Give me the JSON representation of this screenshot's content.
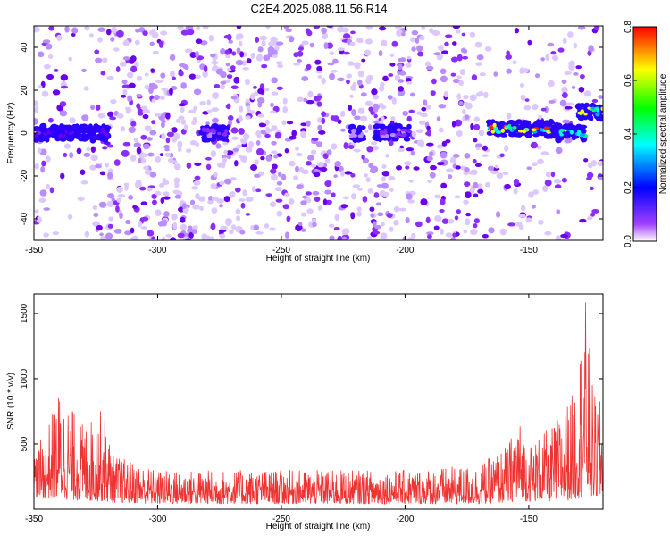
{
  "title": "C2E4.2025.088.11.56.R14",
  "chart_data": [
    {
      "type": "heatmap",
      "xlabel": "Height of straight line (km)",
      "ylabel": "Frequency (Hz)",
      "xlim": [
        -350,
        -120
      ],
      "ylim": [
        -50,
        50
      ],
      "xticks": [
        "-350",
        "-300",
        "-250",
        "-200",
        "-150"
      ],
      "yticks": [
        "-40",
        "-20",
        "0",
        "20",
        "40"
      ],
      "colorbar": {
        "label": "Normalized spectral amplitude",
        "range": [
          0,
          0.8
        ],
        "ticks": [
          "0.0",
          "0.2",
          "0.4",
          "0.6",
          "0.8"
        ],
        "colormap": [
          "#ffffff",
          "#8000ff",
          "#0000ff",
          "#00ffff",
          "#00ff00",
          "#ffff00",
          "#ff0000"
        ]
      },
      "signal_bands": [
        {
          "x": [
            -350,
            -320
          ],
          "frequency": 0,
          "amplitude": 0.3
        },
        {
          "x": [
            -282,
            -272
          ],
          "frequency": 0,
          "amplitude": 0.15
        },
        {
          "x": [
            -222,
            -217
          ],
          "frequency": 0,
          "amplitude": 0.1
        },
        {
          "x": [
            -212,
            -198
          ],
          "frequency": 0,
          "amplitude": 0.15
        },
        {
          "x": [
            -166,
            -140
          ],
          "frequency": 2,
          "amplitude": 0.7
        },
        {
          "x": [
            -140,
            -127
          ],
          "frequency": 0,
          "amplitude": 0.5
        },
        {
          "x": [
            -130,
            -120
          ],
          "frequency": 10,
          "amplitude": 0.65
        }
      ]
    },
    {
      "type": "line",
      "series_color": "#ee3333",
      "xlabel": "Height of straight line (km)",
      "ylabel": "SNR (10 * v/v)",
      "xlim": [
        -350,
        -120
      ],
      "ylim": [
        0,
        1650
      ],
      "xticks": [
        "-350",
        "-300",
        "-250",
        "-200",
        "-150"
      ],
      "yticks": [
        "500",
        "1000",
        "1500"
      ],
      "envelope": [
        {
          "x": -350,
          "low": 100,
          "high": 450
        },
        {
          "x": -345,
          "low": 80,
          "high": 600
        },
        {
          "x": -340,
          "low": 80,
          "high": 920
        },
        {
          "x": -330,
          "low": 60,
          "high": 650
        },
        {
          "x": -322,
          "low": 60,
          "high": 780
        },
        {
          "x": -318,
          "low": 50,
          "high": 420
        },
        {
          "x": -300,
          "low": 40,
          "high": 300
        },
        {
          "x": -250,
          "low": 40,
          "high": 300
        },
        {
          "x": -200,
          "low": 40,
          "high": 300
        },
        {
          "x": -170,
          "low": 40,
          "high": 340
        },
        {
          "x": -158,
          "low": 50,
          "high": 500
        },
        {
          "x": -155,
          "low": 60,
          "high": 750
        },
        {
          "x": -150,
          "low": 60,
          "high": 500
        },
        {
          "x": -140,
          "low": 60,
          "high": 650
        },
        {
          "x": -132,
          "low": 70,
          "high": 900
        },
        {
          "x": -127,
          "low": 100,
          "high": 1620
        },
        {
          "x": -124,
          "low": 80,
          "high": 900
        },
        {
          "x": -120,
          "low": 80,
          "high": 800
        }
      ]
    }
  ]
}
